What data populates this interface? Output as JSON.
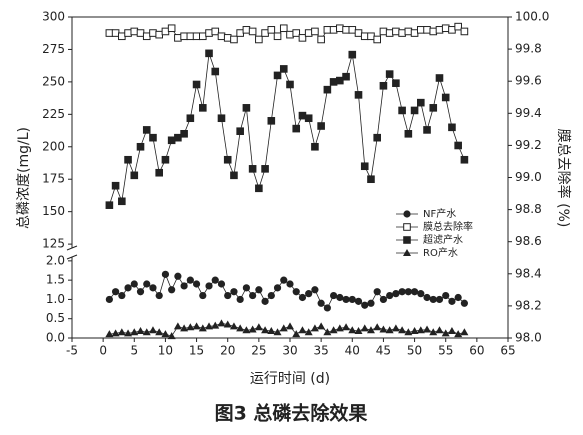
{
  "chart_data": {
    "type": "line",
    "caption": "图3  总磷去除效果",
    "x_label": "运行时间 (d)",
    "y_label": "总磷浓度(mg/L)",
    "y2_label": "膜总去除率 (%)",
    "xlim": [
      -5,
      65
    ],
    "xticks": [
      -5,
      0,
      5,
      10,
      15,
      20,
      25,
      30,
      35,
      40,
      45,
      50,
      55,
      60,
      65
    ],
    "ylim": [
      0,
      300
    ],
    "ybreak": [
      2.1,
      122
    ],
    "yticks": [
      {
        "value": 0,
        "label": "0.0"
      },
      {
        "value": 0.5,
        "label": "0.5"
      },
      {
        "value": 1,
        "label": "1.0"
      },
      {
        "value": 1.5,
        "label": "1.5"
      },
      {
        "value": 2,
        "label": "2.0"
      },
      125,
      150,
      175,
      200,
      225,
      250,
      275,
      300
    ],
    "y2lim": [
      98,
      100
    ],
    "y2ticks": [
      {
        "value": 98,
        "label": "98.0"
      },
      {
        "value": 98.2,
        "label": "98.2"
      },
      {
        "value": 98.4,
        "label": "98.4"
      },
      {
        "value": 98.6,
        "label": "98.6"
      },
      {
        "value": 98.8,
        "label": "98.8"
      },
      {
        "value": 99,
        "label": "99.0"
      },
      {
        "value": 99.2,
        "label": "99.2"
      },
      {
        "value": 99.4,
        "label": "99.4"
      },
      {
        "value": 99.6,
        "label": "99.6"
      },
      {
        "value": 99.8,
        "label": "99.8"
      },
      {
        "value": 100,
        "label": "100.0"
      }
    ],
    "legend": "right",
    "x": [
      1,
      2,
      3,
      4,
      5,
      6,
      7,
      8,
      9,
      10,
      11,
      12,
      13,
      14,
      15,
      16,
      17,
      18,
      19,
      20,
      21,
      22,
      23,
      24,
      25,
      26,
      27,
      28,
      29,
      30,
      31,
      32,
      33,
      34,
      35,
      36,
      37,
      38,
      39,
      40,
      41,
      42,
      43,
      44,
      45,
      46,
      47,
      48,
      49,
      50,
      51,
      52,
      53,
      54,
      55,
      56,
      57,
      58
    ],
    "series": [
      {
        "name": "NF产水",
        "color": "#222222",
        "marker": "circle",
        "values": [
          1.0,
          1.2,
          1.1,
          1.3,
          1.4,
          1.2,
          1.4,
          1.3,
          1.1,
          1.65,
          1.25,
          1.6,
          1.35,
          1.5,
          1.4,
          1.1,
          1.35,
          1.5,
          1.4,
          1.1,
          1.2,
          1.0,
          1.3,
          1.1,
          1.25,
          0.95,
          1.1,
          1.3,
          1.5,
          1.4,
          1.2,
          1.05,
          1.15,
          1.25,
          0.9,
          0.78,
          1.1,
          1.05,
          1.0,
          1.0,
          0.95,
          0.85,
          0.9,
          1.2,
          1.0,
          1.1,
          1.15,
          1.2,
          1.2,
          1.2,
          1.15,
          1.05,
          1.0,
          1.0,
          1.1,
          0.95,
          1.05,
          0.9
        ]
      },
      {
        "name": "膜总去除率",
        "color": "#222222",
        "marker": "open-square",
        "axis": "y2",
        "values": [
          99.9,
          99.9,
          99.88,
          99.9,
          99.91,
          99.9,
          99.88,
          99.9,
          99.89,
          99.91,
          99.93,
          99.87,
          99.88,
          99.88,
          99.88,
          99.88,
          99.9,
          99.91,
          99.88,
          99.87,
          99.86,
          99.9,
          99.92,
          99.91,
          99.86,
          99.9,
          99.92,
          99.88,
          99.93,
          99.89,
          99.9,
          99.87,
          99.9,
          99.91,
          99.86,
          99.92,
          99.92,
          99.93,
          99.92,
          99.92,
          99.9,
          99.88,
          99.88,
          99.86,
          99.91,
          99.9,
          99.91,
          99.9,
          99.91,
          99.9,
          99.92,
          99.92,
          99.91,
          99.92,
          99.93,
          99.92,
          99.94,
          99.91
        ]
      },
      {
        "name": "超滤产水",
        "color": "#222222",
        "marker": "square",
        "values": [
          155,
          170,
          158,
          190,
          178,
          200,
          213,
          207,
          180,
          190,
          205,
          207,
          210,
          222,
          248,
          230,
          272,
          258,
          222,
          190,
          178,
          212,
          230,
          183,
          168,
          183,
          220,
          255,
          260,
          248,
          214,
          224,
          222,
          200,
          216,
          244,
          250,
          251,
          254,
          271,
          240,
          185,
          175,
          207,
          247,
          256,
          249,
          228,
          210,
          228,
          234,
          213,
          230,
          253,
          238,
          215,
          201,
          190
        ]
      },
      {
        "name": "RO产水",
        "color": "#222222",
        "marker": "triangle",
        "values": [
          0.1,
          0.12,
          0.15,
          0.12,
          0.15,
          0.18,
          0.15,
          0.2,
          0.15,
          0.1,
          0.05,
          0.3,
          0.25,
          0.28,
          0.3,
          0.25,
          0.3,
          0.32,
          0.38,
          0.35,
          0.3,
          0.25,
          0.2,
          0.22,
          0.28,
          0.2,
          0.18,
          0.15,
          0.25,
          0.3,
          0.1,
          0.2,
          0.15,
          0.25,
          0.3,
          0.15,
          0.2,
          0.25,
          0.28,
          0.2,
          0.18,
          0.25,
          0.2,
          0.28,
          0.22,
          0.2,
          0.25,
          0.2,
          0.15,
          0.18,
          0.2,
          0.22,
          0.15,
          0.2,
          0.12,
          0.18,
          0.1,
          0.15
        ]
      }
    ]
  }
}
